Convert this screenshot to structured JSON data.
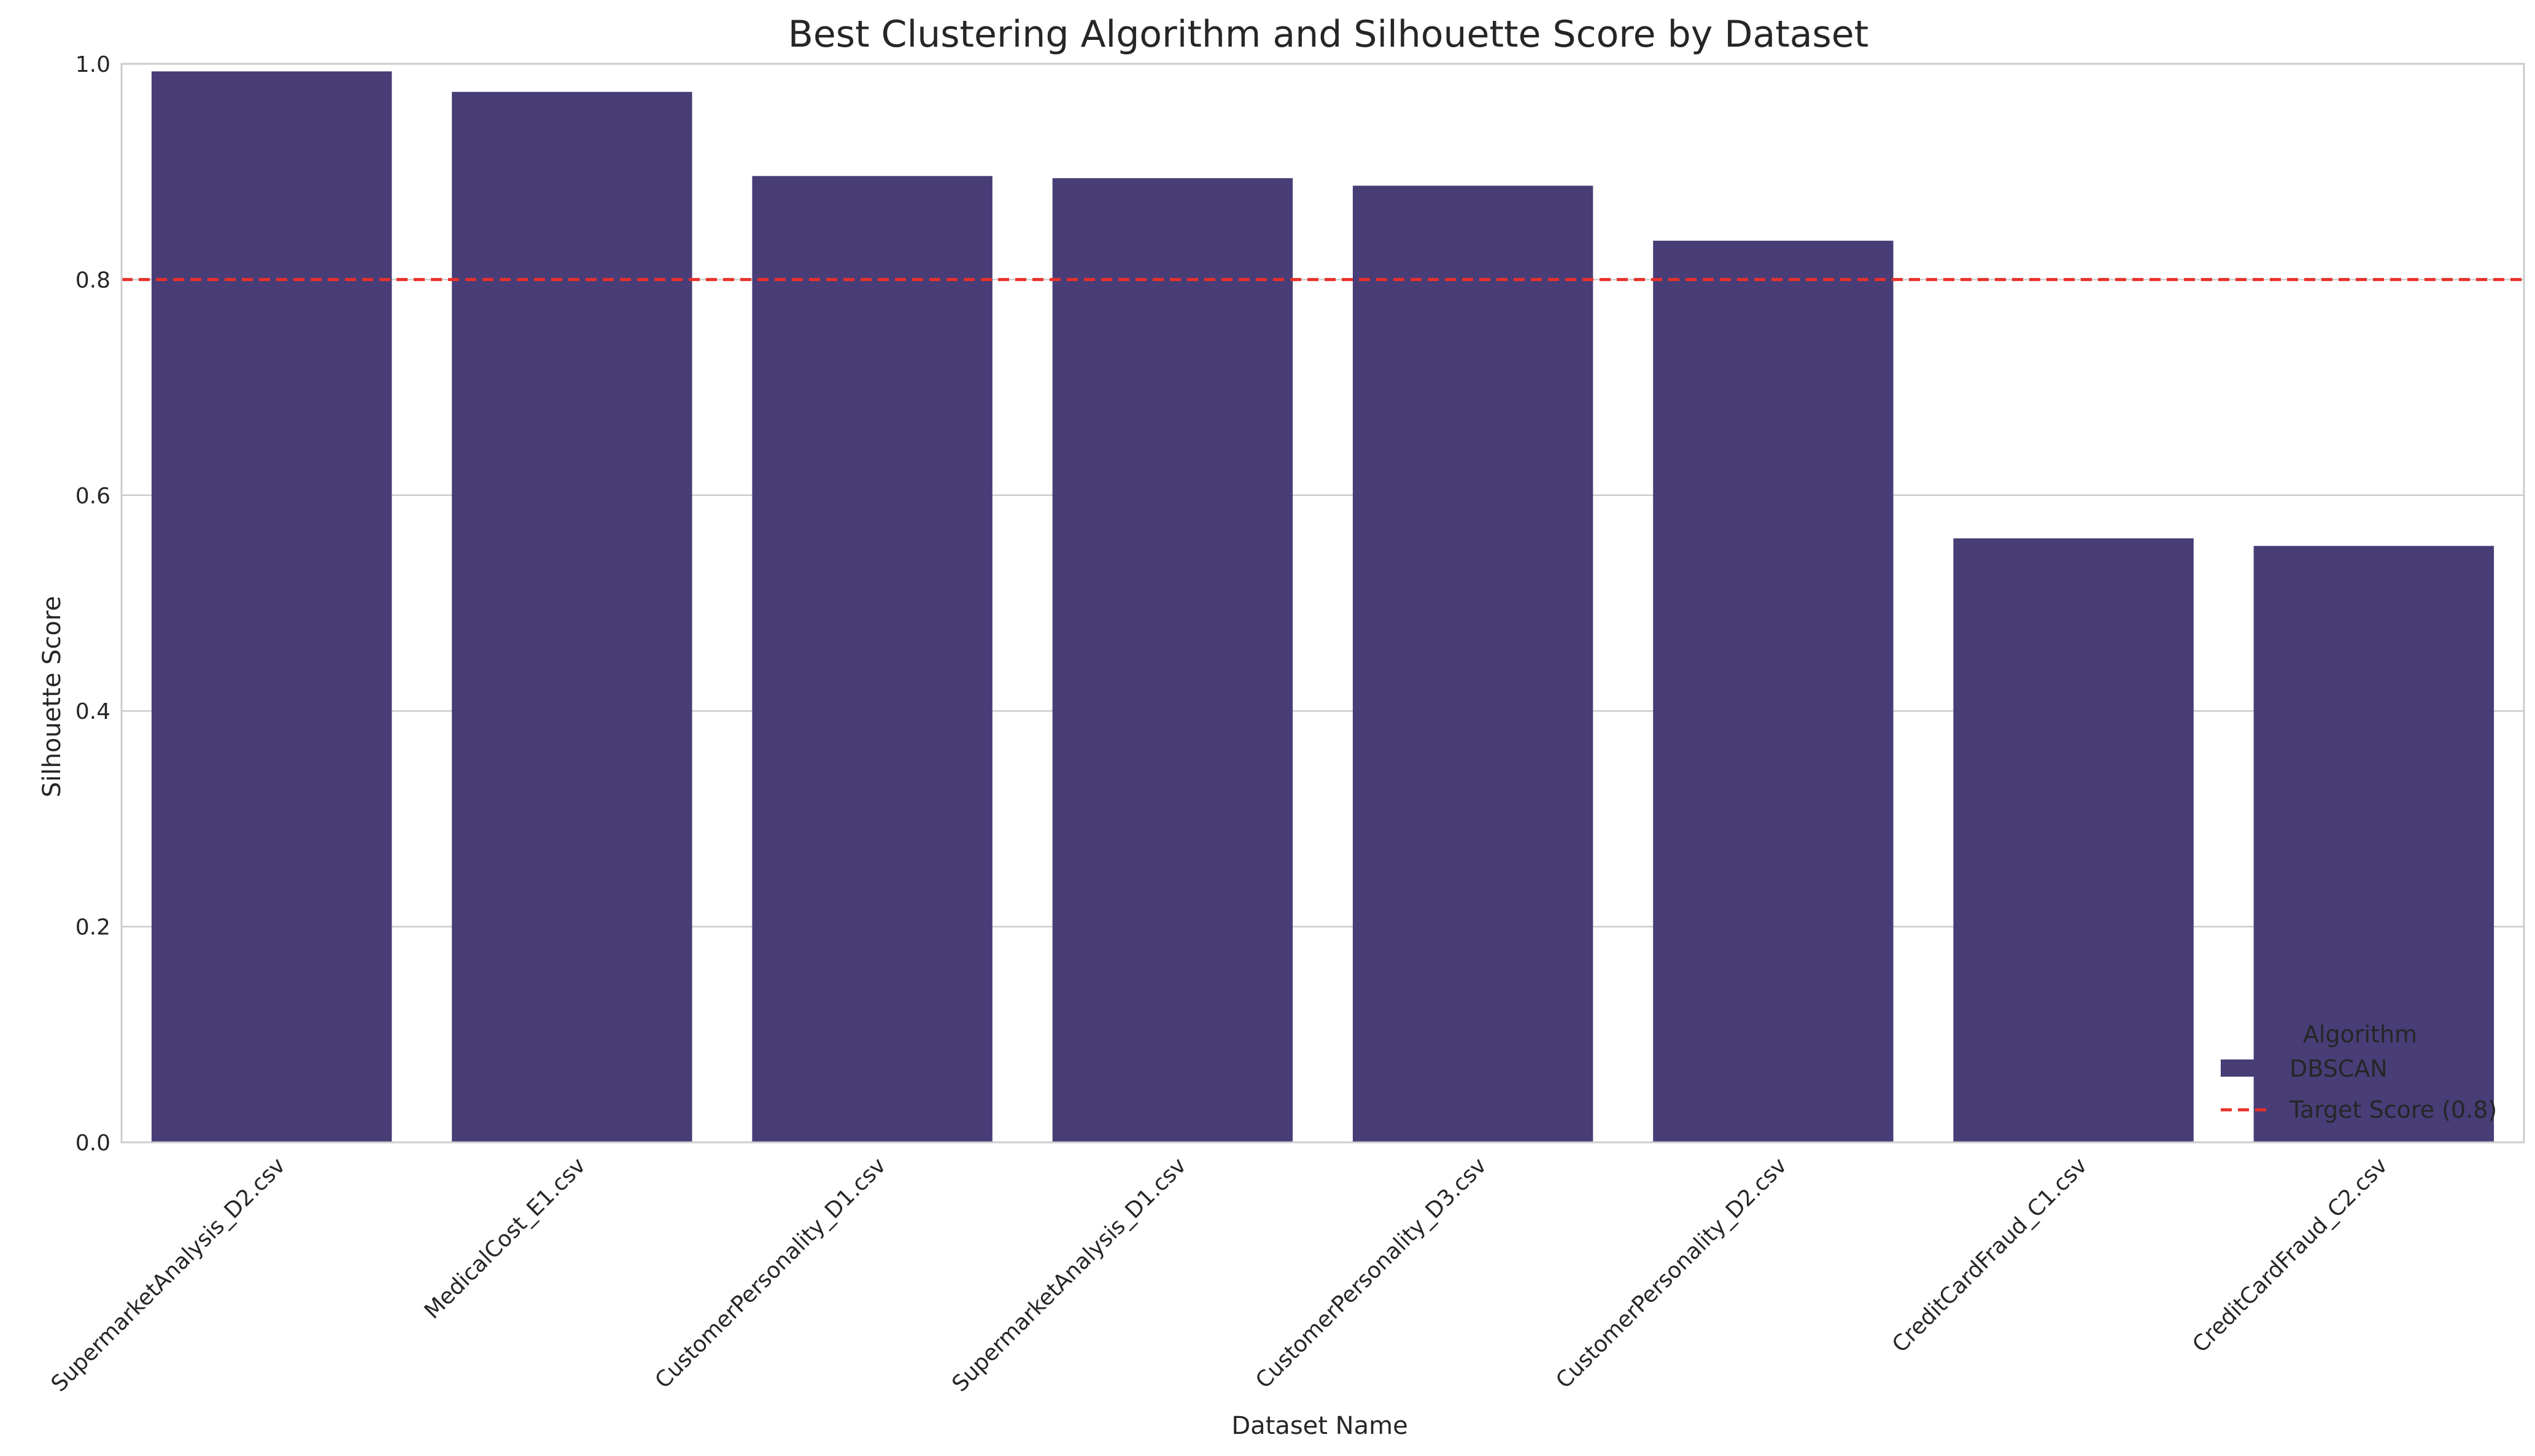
{
  "chart_data": {
    "type": "bar",
    "title": "Best Clustering Algorithm and Silhouette Score by Dataset",
    "xlabel": "Dataset Name",
    "ylabel": "Silhouette Score",
    "ylim": [
      0,
      1.0
    ],
    "yticks": [
      "0.0",
      "0.2",
      "0.4",
      "0.6",
      "0.8",
      "1.0"
    ],
    "grid": true,
    "categories": [
      "SupermarketAnalysis_D2.csv",
      "MedicalCost_E1.csv",
      "CustomerPersonality_D1.csv",
      "SupermarketAnalysis_D1.csv",
      "CustomerPersonality_D3.csv",
      "CustomerPersonality_D2.csv",
      "CreditCardFraud_C1.csv",
      "CreditCardFraud_C2.csv"
    ],
    "series": [
      {
        "name": "DBSCAN",
        "color": "#483d77",
        "values": [
          0.993,
          0.974,
          0.896,
          0.894,
          0.887,
          0.836,
          0.56,
          0.553
        ]
      }
    ],
    "reference_line": {
      "name": "Target Score (0.8)",
      "value": 0.8,
      "color": "#e8302a"
    },
    "legend": {
      "title": "Algorithm",
      "placement": "lower-right"
    }
  }
}
